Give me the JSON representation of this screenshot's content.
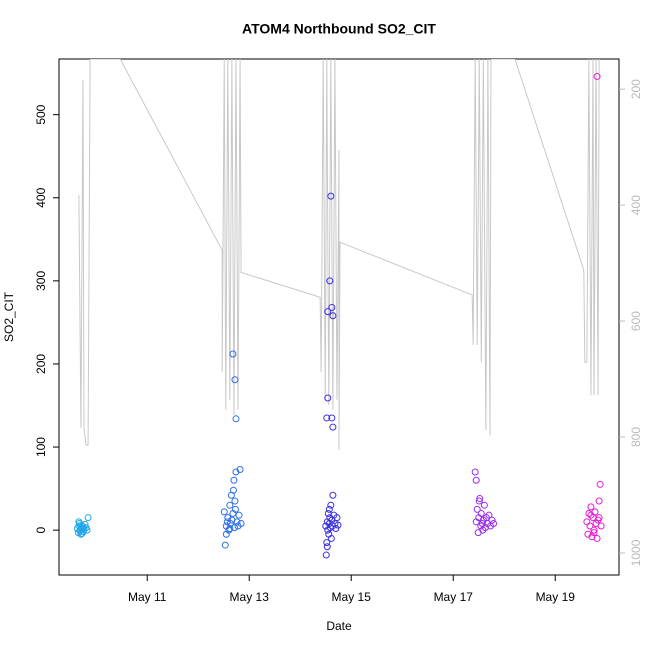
{
  "chart_data": {
    "type": "scatter",
    "title": "ATOM4 Northbound SO2_CIT",
    "x_label": "Date",
    "y_label": "SO2_CIT",
    "xlim": [
      9.27,
      20.25
    ],
    "xticks": [
      {
        "value": 11,
        "label": "May 11"
      },
      {
        "value": 13,
        "label": "May 13"
      },
      {
        "value": 15,
        "label": "May 15"
      },
      {
        "value": 17,
        "label": "May 17"
      },
      {
        "value": 19,
        "label": "May 19"
      }
    ],
    "ylim": [
      -54,
      567
    ],
    "yticks": [
      0,
      100,
      200,
      300,
      400,
      500
    ],
    "y2lim": [
      1038,
      148
    ],
    "y2ticks": [
      200,
      400,
      600,
      800,
      1000
    ],
    "series": [
      {
        "type": "line",
        "axis": "y2",
        "color": "#c8c8c8",
        "x": [
          9.66,
          9.7,
          9.74,
          9.76,
          9.8,
          9.84,
          9.88,
          10.47,
          12.47,
          12.47,
          12.51,
          12.54,
          12.58,
          12.62,
          12.66,
          12.7,
          12.74,
          12.78,
          12.82,
          12.84,
          14.39,
          14.41,
          14.45,
          14.49,
          14.52,
          14.56,
          14.6,
          14.64,
          14.68,
          14.72,
          14.76,
          14.76,
          14.78,
          17.37,
          17.39,
          17.43,
          17.47,
          17.51,
          17.55,
          17.59,
          17.64,
          17.68,
          17.72,
          17.74,
          18.21,
          19.56,
          19.58,
          19.62,
          19.66,
          19.7,
          19.74,
          19.76,
          19.8,
          19.84,
          19.86
        ],
        "values": [
          383,
          784,
          184,
          784,
          814,
          814,
          148,
          148,
          478,
          688,
          148,
          753,
          148,
          736,
          148,
          762,
          148,
          753,
          148,
          516,
          559,
          688,
          148,
          736,
          148,
          745,
          148,
          753,
          148,
          736,
          305,
          822,
          464,
          555,
          641,
          148,
          641,
          148,
          671,
          148,
          788,
          148,
          797,
          148,
          148,
          512,
          671,
          671,
          148,
          728,
          148,
          728,
          148,
          728,
          148
        ]
      },
      {
        "color": "#22a6e8",
        "x": [
          9.63,
          9.65,
          9.66,
          9.67,
          9.68,
          9.69,
          9.7,
          9.71,
          9.72,
          9.73,
          9.74,
          9.75,
          9.76,
          9.78,
          9.8,
          9.82,
          9.84,
          9.66,
          9.7,
          9.74
        ],
        "values": [
          2,
          -3,
          5,
          8,
          -1,
          0,
          3,
          6,
          -4,
          1,
          4,
          -2,
          2,
          7,
          3,
          0,
          15,
          10,
          -5,
          1
        ]
      },
      {
        "color": "#2f70e8",
        "x": [
          12.51,
          12.53,
          12.55,
          12.57,
          12.58,
          12.6,
          12.62,
          12.63,
          12.65,
          12.66,
          12.68,
          12.7,
          12.71,
          12.72,
          12.73,
          12.74,
          12.76,
          12.78,
          12.8,
          12.82,
          12.84,
          12.55,
          12.62,
          12.69,
          12.68,
          12.72,
          12.74
        ],
        "values": [
          22,
          -18,
          5,
          10,
          15,
          0,
          30,
          8,
          42,
          12,
          20,
          60,
          3,
          35,
          25,
          70,
          10,
          5,
          18,
          73,
          8,
          -5,
          2,
          48,
          212,
          181,
          134
        ]
      },
      {
        "color": "#3a30e0",
        "x": [
          14.5,
          14.51,
          14.52,
          14.53,
          14.54,
          14.55,
          14.56,
          14.57,
          14.58,
          14.59,
          14.6,
          14.61,
          14.62,
          14.63,
          14.64,
          14.66,
          14.68,
          14.7,
          14.72,
          14.74,
          14.53,
          14.57,
          14.6,
          14.58,
          14.62,
          14.54,
          14.64,
          14.54,
          14.52,
          14.62,
          14.64
        ],
        "values": [
          5,
          -30,
          -15,
          10,
          0,
          20,
          -5,
          8,
          15,
          3,
          30,
          -10,
          12,
          5,
          42,
          18,
          8,
          2,
          15,
          6,
          -20,
          25,
          402,
          300,
          268,
          263,
          258,
          159,
          135,
          135,
          124
        ]
      },
      {
        "color": "#9b2cf0",
        "x": [
          17.45,
          17.47,
          17.49,
          17.5,
          17.52,
          17.54,
          17.55,
          17.57,
          17.59,
          17.61,
          17.63,
          17.65,
          17.67,
          17.7,
          17.73,
          17.76,
          17.79,
          17.51,
          17.58,
          17.43,
          17.45
        ],
        "values": [
          10,
          25,
          -3,
          15,
          38,
          5,
          20,
          8,
          12,
          30,
          3,
          15,
          8,
          18,
          5,
          12,
          8,
          35,
          0,
          70,
          60
        ]
      },
      {
        "color": "#e41fd4",
        "x": [
          19.62,
          19.64,
          19.66,
          19.68,
          19.7,
          19.72,
          19.74,
          19.76,
          19.78,
          19.8,
          19.82,
          19.84,
          19.86,
          19.88,
          19.9,
          19.7,
          19.76,
          19.86,
          19.82
        ],
        "values": [
          10,
          -5,
          20,
          5,
          28,
          -8,
          15,
          0,
          22,
          8,
          -10,
          12,
          35,
          55,
          5,
          18,
          -3,
          15,
          546
        ]
      }
    ]
  }
}
